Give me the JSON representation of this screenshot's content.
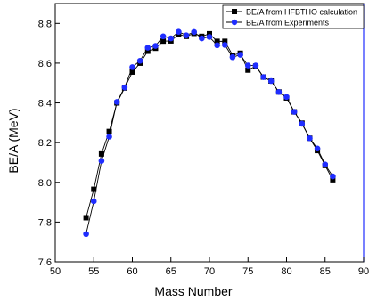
{
  "chart_data": {
    "type": "line",
    "xlabel": "Mass Number",
    "ylabel": "BE/A (MeV)",
    "xlim": [
      50,
      90
    ],
    "ylim": [
      7.6,
      8.9
    ],
    "x_ticks": [
      50,
      55,
      60,
      65,
      70,
      75,
      80,
      85,
      90
    ],
    "y_ticks": [
      7.6,
      7.8,
      8.0,
      8.2,
      8.4,
      8.6,
      8.8
    ],
    "legend_position": "top-right",
    "grid": false,
    "series": [
      {
        "name": "BE/A from HFBTHO calculation",
        "marker": "square",
        "color": "#000000",
        "x": [
          54,
          55,
          56,
          57,
          58,
          59,
          60,
          61,
          62,
          63,
          64,
          65,
          66,
          67,
          68,
          69,
          70,
          71,
          72,
          73,
          74,
          75,
          76,
          77,
          78,
          79,
          80,
          81,
          82,
          83,
          84,
          85,
          86
        ],
        "y": [
          7.822,
          7.965,
          8.143,
          8.256,
          8.4,
          8.475,
          8.555,
          8.6,
          8.66,
          8.675,
          8.711,
          8.712,
          8.745,
          8.735,
          8.75,
          8.735,
          8.748,
          8.71,
          8.71,
          8.64,
          8.65,
          8.565,
          8.585,
          8.53,
          8.51,
          8.455,
          8.425,
          8.355,
          8.298,
          8.222,
          8.16,
          8.085,
          8.013
        ]
      },
      {
        "name": "BE/A from Experiments",
        "marker": "circle",
        "color": "#1f2dff",
        "x": [
          54,
          55,
          56,
          57,
          58,
          59,
          60,
          61,
          62,
          63,
          64,
          65,
          66,
          67,
          68,
          69,
          70,
          71,
          72,
          73,
          74,
          75,
          76,
          77,
          78,
          79,
          80,
          81,
          82,
          83,
          84,
          85,
          86
        ],
        "y": [
          7.74,
          7.905,
          8.108,
          8.23,
          8.405,
          8.478,
          8.58,
          8.612,
          8.678,
          8.687,
          8.735,
          8.725,
          8.758,
          8.74,
          8.757,
          8.725,
          8.732,
          8.69,
          8.692,
          8.63,
          8.642,
          8.588,
          8.588,
          8.53,
          8.51,
          8.455,
          8.43,
          8.355,
          8.295,
          8.222,
          8.17,
          8.09,
          8.03
        ]
      }
    ]
  }
}
